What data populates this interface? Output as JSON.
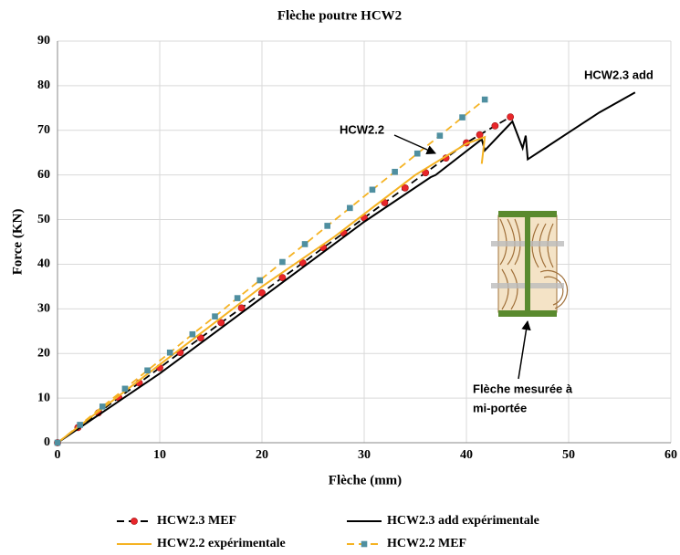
{
  "chart_data": {
    "type": "line",
    "title": "Flèche poutre HCW2",
    "x_label": "Flèche (mm)",
    "y_label": "Force (KN)",
    "xlim": [
      0,
      60
    ],
    "xticks": [
      0,
      10,
      20,
      30,
      40,
      50,
      60
    ],
    "ylim": [
      0,
      90
    ],
    "yticks": [
      0,
      10,
      20,
      30,
      40,
      50,
      60,
      70,
      80,
      90
    ],
    "grid": true,
    "legend": "bottom",
    "series": [
      {
        "name": "HCW2.3 MEF",
        "color": "#000000",
        "dashed": true,
        "marker": "circle",
        "marker_color": "#e8262a",
        "x": [
          0,
          2,
          4,
          6,
          8,
          10,
          12,
          14,
          16,
          18,
          20,
          22,
          24,
          26,
          28,
          30,
          32,
          34,
          36,
          38,
          40,
          41.3,
          42.8,
          44.3
        ],
        "values": [
          0,
          3.4,
          6.7,
          10.1,
          13.4,
          16.8,
          20.2,
          23.5,
          26.9,
          30.2,
          33.6,
          37,
          40.3,
          43.7,
          47,
          50.4,
          53.8,
          57.1,
          60.5,
          63.8,
          67.2,
          69,
          71,
          73
        ]
      },
      {
        "name": "HCW2.3 add expérimentale",
        "color": "#000000",
        "dashed": false,
        "marker": null,
        "marker_color": null,
        "x": [
          0,
          10,
          20,
          30,
          36.5,
          37,
          41.5,
          41.8,
          44.5,
          45.5,
          45.8,
          46,
          48,
          50,
          53,
          56.5
        ],
        "values": [
          0,
          15.5,
          32.5,
          49.5,
          59.5,
          60,
          68,
          65.5,
          72,
          66,
          68.8,
          63.5,
          66.5,
          69.5,
          74,
          78.5
        ]
      },
      {
        "name": "HCW2.2 expérimentale",
        "color": "#f5b323",
        "dashed": false,
        "marker": null,
        "marker_color": null,
        "x": [
          0,
          10,
          20,
          27,
          35,
          40,
          41.8,
          41.5
        ],
        "values": [
          0,
          17.5,
          35,
          46,
          60,
          67,
          68.5,
          62.5
        ]
      },
      {
        "name": "HCW2.2 MEF",
        "color": "#f5b323",
        "dashed": true,
        "marker": "square",
        "marker_color": "#4f8fa0",
        "x": [
          0,
          2.2,
          4.4,
          6.6,
          8.8,
          11,
          13.2,
          15.4,
          17.6,
          19.8,
          22,
          24.2,
          26.4,
          28.6,
          30.8,
          33,
          35.2,
          37.4,
          39.6,
          41.8
        ],
        "values": [
          0,
          4,
          8.1,
          12.1,
          16.2,
          20.2,
          24.3,
          28.3,
          32.4,
          36.4,
          40.5,
          44.5,
          48.6,
          52.6,
          56.7,
          60.7,
          64.8,
          68.8,
          72.9,
          76.9
        ]
      }
    ],
    "annotations": [
      {
        "text": "HCW2.2"
      },
      {
        "text": "HCW2.3 add"
      },
      {
        "lines": [
          "Flèche mesurée à",
          "mi-portée"
        ]
      }
    ]
  }
}
